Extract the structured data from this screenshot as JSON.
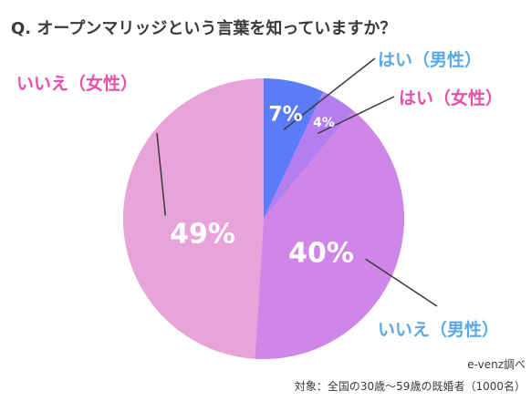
{
  "chart_data": {
    "type": "pie",
    "title": "Q. オープンマリッジという言葉を知っていますか？",
    "slices": [
      {
        "label": "はい（男性）",
        "value": 7,
        "value_label": "7%",
        "color": "#5b7cfa",
        "label_color": "#5aa9e6"
      },
      {
        "label": "はい（女性）",
        "value": 4,
        "value_label": "4%",
        "color": "#b47ef0",
        "label_color": "#e94fa6"
      },
      {
        "label": "いいえ（男性）",
        "value": 40,
        "value_label": "40%",
        "color": "#cf86e6",
        "label_color": "#5aa9e6"
      },
      {
        "label": "いいえ（女性）",
        "value": 49,
        "value_label": "49%",
        "color": "#e8a3d9",
        "label_color": "#e94fa6"
      }
    ]
  },
  "footer": {
    "source": "e-venz調べ",
    "subject": "対象：全国の30歳〜59歳の既婚者（1000名）"
  }
}
